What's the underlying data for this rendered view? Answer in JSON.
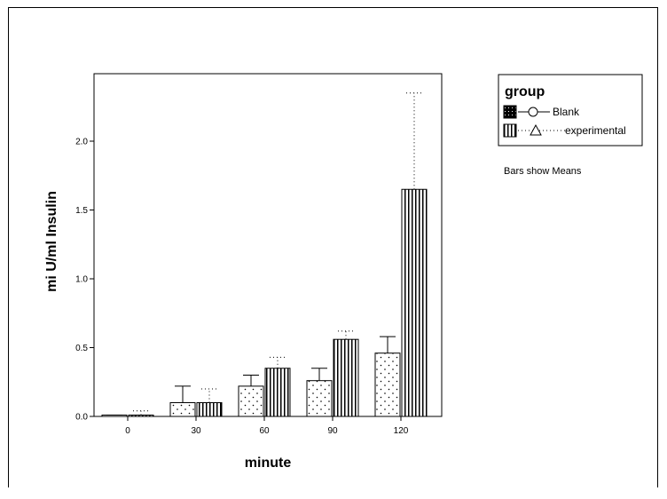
{
  "chart_data": {
    "type": "bar",
    "title": "",
    "xlabel": "minute",
    "ylabel": "mi U/ml Insulin",
    "categories": [
      "0",
      "30",
      "60",
      "90",
      "120"
    ],
    "ylim": [
      0,
      2.5
    ],
    "yticks": [
      "0.0",
      "0.5",
      "1.0",
      "1.5",
      "2.0"
    ],
    "series": [
      {
        "name": "Blank",
        "values": [
          0.01,
          0.1,
          0.22,
          0.26,
          0.46
        ],
        "error_upper": [
          0.01,
          0.22,
          0.3,
          0.35,
          0.58
        ]
      },
      {
        "name": "experimental",
        "values": [
          0.01,
          0.1,
          0.35,
          0.56,
          1.65
        ],
        "error_upper": [
          0.04,
          0.2,
          0.43,
          0.62,
          2.35
        ]
      }
    ],
    "legend": {
      "title": "group",
      "placement": "top-right"
    },
    "note": "Bars show Means",
    "grid": false
  }
}
